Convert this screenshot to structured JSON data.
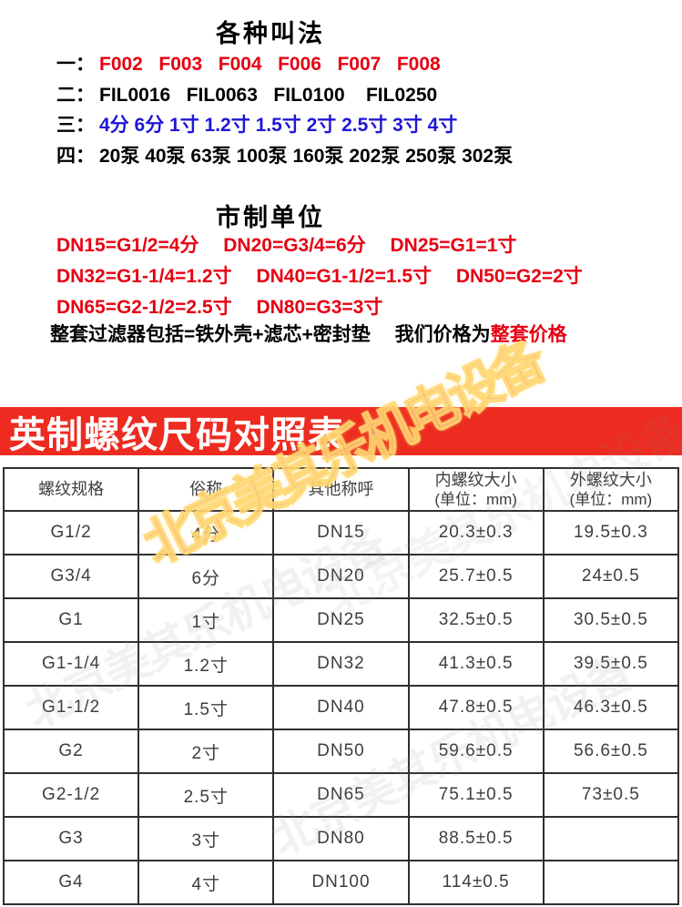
{
  "colors": {
    "accent_red_text": "#e60012",
    "accent_blue_text": "#1f16d6",
    "banner_red": "#ed2b20",
    "watermark_pink": "#f59a8e",
    "watermark_yellow": "#ffd76f"
  },
  "naming_section": {
    "title": "各种叫法",
    "lines": [
      {
        "label": "一：",
        "text": "F002   F003   F004   F006   F007   F008"
      },
      {
        "label": "二：",
        "text": "FIL0016   FIL0063   FIL0100    FIL0250"
      },
      {
        "label": "三：",
        "text": "4分 6分 1寸 1.2寸 1.5寸 2寸 2.5寸 3寸 4寸"
      },
      {
        "label": "四：",
        "text": "20泵 40泵 63泵 100泵 160泵 202泵 250泵 302泵"
      }
    ]
  },
  "metric_section": {
    "title": "市制单位",
    "lines": [
      "DN15=G1/2=4分　 DN20=G3/4=6分　 DN25=G1=1寸",
      "DN32=G1-1/4=1.2寸　 DN40=G1-1/2=1.5寸　 DN50=G2=2寸",
      "DN65=G2-1/2=2.5寸　 DN80=G3=3寸"
    ],
    "note_black": "整套过滤器包括=铁外壳+滤芯+密封垫　 我们价格为",
    "note_red": "整套价格"
  },
  "banner": {
    "title": "英制螺纹尺码对照表"
  },
  "table": {
    "headers": [
      {
        "line1": "螺纹规格",
        "line2": ""
      },
      {
        "line1": "俗称",
        "line2": ""
      },
      {
        "line1": "其他称呼",
        "line2": ""
      },
      {
        "line1": "内螺纹大小",
        "line2": "(单位：mm)"
      },
      {
        "line1": "外螺纹大小",
        "line2": "(单位：mm)"
      }
    ],
    "rows": [
      [
        "G1/2",
        "4分",
        "DN15",
        "20.3±0.3",
        "19.5±0.3"
      ],
      [
        "G3/4",
        "6分",
        "DN20",
        "25.7±0.5",
        "24±0.5"
      ],
      [
        "G1",
        "1寸",
        "DN25",
        "32.5±0.5",
        "30.5±0.5"
      ],
      [
        "G1-1/4",
        "1.2寸",
        "DN32",
        "41.3±0.5",
        "39.5±0.5"
      ],
      [
        "G1-1/2",
        "1.5寸",
        "DN40",
        "47.8±0.5",
        "46.3±0.5"
      ],
      [
        "G2",
        "2寸",
        "DN50",
        "59.6±0.5",
        "56.6±0.5"
      ],
      [
        "G2-1/2",
        "2.5寸",
        "DN65",
        "75.1±0.5",
        "73±0.5"
      ],
      [
        "G3",
        "3寸",
        "DN80",
        "88.5±0.5",
        ""
      ],
      [
        "G4",
        "4寸",
        "DN100",
        "114±0.5",
        ""
      ]
    ]
  },
  "watermark": {
    "text": "北京美其乐机电设备"
  }
}
